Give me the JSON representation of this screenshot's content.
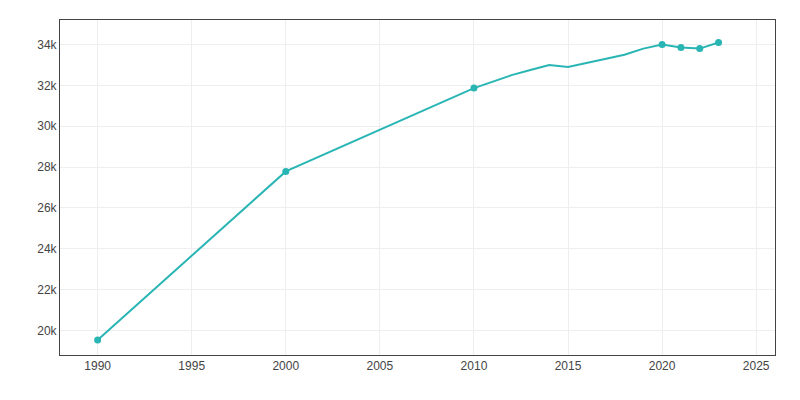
{
  "chart_data": {
    "type": "line",
    "x": [
      1990,
      2000,
      2010,
      2011,
      2012,
      2013,
      2014,
      2015,
      2016,
      2017,
      2018,
      2019,
      2020,
      2021,
      2022,
      2023
    ],
    "series": [
      {
        "type": "line",
        "color": "#2ab5b5",
        "values": [
          19536,
          27786,
          31867,
          32200,
          32500,
          32750,
          33000,
          32900,
          33100,
          33300,
          33500,
          33800,
          34000,
          33850,
          33800,
          34100
        ]
      },
      {
        "type": "scatter",
        "marker": "circle",
        "color": "#2ab5b5",
        "values": [
          19536,
          27786,
          31867,
          null,
          null,
          null,
          null,
          null,
          null,
          null,
          null,
          null,
          34000,
          33850,
          33800,
          34100
        ]
      }
    ],
    "xlim": [
      1988,
      2026
    ],
    "ylim": [
      18800,
      35200
    ],
    "xticks": [
      1990,
      1995,
      2000,
      2005,
      2010,
      2015,
      2020,
      2025
    ],
    "yticks": [
      {
        "value": 20000,
        "label": "20k"
      },
      {
        "value": 22000,
        "label": "22k"
      },
      {
        "value": 24000,
        "label": "24k"
      },
      {
        "value": 26000,
        "label": "26k"
      },
      {
        "value": 28000,
        "label": "28k"
      },
      {
        "value": 30000,
        "label": "30k"
      },
      {
        "value": 32000,
        "label": "32k"
      },
      {
        "value": 34000,
        "label": "34k"
      }
    ],
    "grid": true
  }
}
